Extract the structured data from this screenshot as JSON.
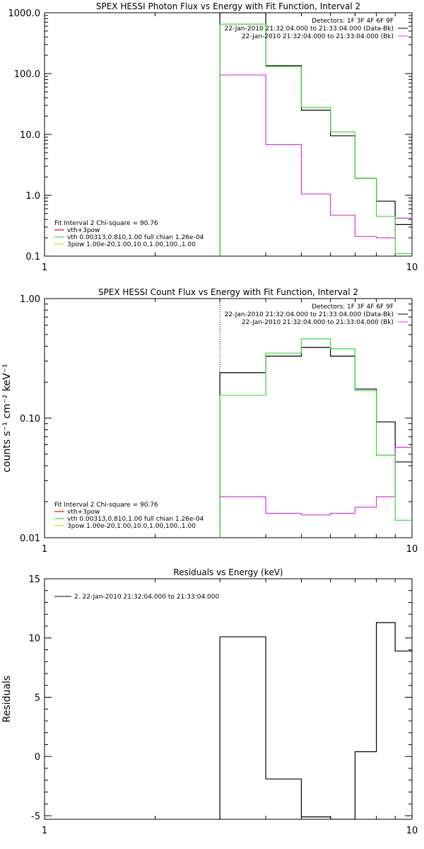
{
  "colors": {
    "black": "#000000",
    "magenta": "#dd33dd",
    "green": "#33dd33",
    "red": "#ff0000",
    "yellow": "#dddd00"
  },
  "chart_data": [
    {
      "type": "line",
      "title": "SPEX HESSI Photon Flux vs Energy with Fit Function, Interval 2",
      "xlabel": "",
      "ylabel": "",
      "xscale": "log",
      "yscale": "log",
      "xlim": [
        1,
        10
      ],
      "ylim": [
        0.1,
        1000
      ],
      "x_ticks": [
        {
          "v": 1,
          "label": "1"
        },
        {
          "v": 10,
          "label": "10"
        }
      ],
      "y_ticks": [
        {
          "v": 1000,
          "label": "1000.0"
        },
        {
          "v": 100,
          "label": "100.0"
        },
        {
          "v": 10,
          "label": "10.0"
        },
        {
          "v": 1,
          "label": "1.0"
        },
        {
          "v": 0.1,
          "label": "0.1"
        }
      ],
      "vline": {
        "x": 3.0,
        "color": "green"
      },
      "info_lines": [
        "Detectors: 1F 3F 4F 6F 9F",
        "22-Jan-2010 21:32:04.000 to 21:33:04.000 (Data-Bk)",
        "22-Jan-2010 21:32:04.000 to 21:33:04.000 (Bk)"
      ],
      "fit_legend": {
        "header": "Fit Interval 2    Chi-square = 90.76",
        "entries": [
          {
            "label": "vth+3pow",
            "color": "red"
          },
          {
            "label": "vth 0.00313,0.810,1.00  full chian 1.26e-04",
            "color": "green"
          },
          {
            "label": "3pow 1.00e-20,1.00,10.0,1.00,100.,1.00",
            "color": "yellow"
          }
        ]
      },
      "series": [
        {
          "name": "22-Jan-2010 21:32:04.000 to 21:33:04.000 (Data-Bk)",
          "color": "black",
          "edges": [
            3.0,
            4.0,
            5.0,
            6.0,
            7.0,
            8.0,
            9.0,
            10.0
          ],
          "values": [
            1000,
            135,
            25,
            9.5,
            1.9,
            0.8,
            0.33
          ]
        },
        {
          "name": "22-Jan-2010 21:32:04.000 to 21:33:04.000 (Bk)",
          "color": "magenta",
          "edges": [
            3.0,
            4.0,
            5.0,
            6.0,
            7.0,
            8.0,
            9.0,
            10.0
          ],
          "values": [
            95,
            6.8,
            1.05,
            0.47,
            0.21,
            0.2,
            0.42
          ]
        },
        {
          "name": "",
          "color": "green",
          "edges": [
            3.0,
            4.0,
            5.0,
            6.0,
            7.0,
            8.0,
            9.0,
            10.0
          ],
          "values": [
            650,
            130,
            28,
            11,
            1.9,
            0.45,
            0.11
          ]
        }
      ]
    },
    {
      "type": "line",
      "title": "SPEX HESSI Count Flux vs Energy with Fit Function, Interval 2",
      "xlabel": "",
      "ylabel": "counts s⁻¹ cm⁻² keV⁻¹",
      "xscale": "log",
      "yscale": "log",
      "xlim": [
        1,
        10
      ],
      "ylim": [
        0.01,
        1
      ],
      "x_ticks": [
        {
          "v": 1,
          "label": "1"
        },
        {
          "v": 10,
          "label": "10"
        }
      ],
      "y_ticks": [
        {
          "v": 1,
          "label": "1.00"
        },
        {
          "v": 0.1,
          "label": "0.10"
        },
        {
          "v": 0.01,
          "label": "0.01"
        }
      ],
      "vline": {
        "x": 3.0,
        "color": "black"
      },
      "vline2": {
        "x": 3.0,
        "color": "green",
        "ymax": 0.15
      },
      "info_lines": [
        "Detectors: 1F 3F 4F 6F 9F",
        "22-Jan-2010 21:32:04.000 to 21:33:04.000 (Data-Bk)",
        "22-Jan-2010 21:32:04.000 to 21:33:04.000 (Bk)"
      ],
      "fit_legend": {
        "header": "Fit Interval 2    Chi-square = 90.76",
        "entries": [
          {
            "label": "vth+3pow",
            "color": "red"
          },
          {
            "label": "vth 0.00313,0.810,1.00  full chian 1.26e-04",
            "color": "green"
          },
          {
            "label": "3pow 1.00e-20,1.00,10.0,1.00,100.,1.00",
            "color": "yellow"
          }
        ]
      },
      "series": [
        {
          "name": "22-Jan-2010 21:32:04.000 to 21:33:04.000 (Data-Bk)",
          "color": "black",
          "edges": [
            3.0,
            4.0,
            5.0,
            6.0,
            7.0,
            8.0,
            9.0,
            10.0
          ],
          "values": [
            0.24,
            0.33,
            0.39,
            0.33,
            0.175,
            0.093,
            0.043
          ]
        },
        {
          "name": "22-Jan-2010 21:32:04.000 to 21:33:04.000 (Bk)",
          "color": "magenta",
          "edges": [
            3.0,
            4.0,
            5.0,
            6.0,
            7.0,
            8.0,
            9.0,
            10.0
          ],
          "values": [
            0.022,
            0.016,
            0.0155,
            0.016,
            0.018,
            0.022,
            0.057
          ]
        },
        {
          "name": "",
          "color": "green",
          "edges": [
            3.0,
            4.0,
            5.0,
            6.0,
            7.0,
            8.0,
            9.0,
            10.0
          ],
          "values": [
            0.155,
            0.35,
            0.46,
            0.38,
            0.17,
            0.049,
            0.014
          ]
        }
      ]
    },
    {
      "type": "line",
      "title": "Residuals vs Energy (keV)",
      "xlabel": "",
      "ylabel": "Residuals",
      "xscale": "log",
      "yscale": "linear",
      "xlim": [
        1,
        10
      ],
      "ylim": [
        -5.3,
        15
      ],
      "x_ticks": [
        {
          "v": 1,
          "label": "1"
        },
        {
          "v": 10,
          "label": "10"
        }
      ],
      "y_ticks": [
        {
          "v": 15,
          "label": "15"
        },
        {
          "v": 10,
          "label": "10"
        },
        {
          "v": 5,
          "label": "5"
        },
        {
          "v": 0,
          "label": "0"
        },
        {
          "v": -5,
          "label": "-5"
        }
      ],
      "legend_entry": "2. 22-Jan-2010 21:32:04.000 to 21:33:04.000",
      "series": [
        {
          "name": "2. 22-Jan-2010 21:32:04.000 to 21:33:04.000",
          "color": "black",
          "edges": [
            3.0,
            4.0,
            5.0,
            6.0,
            7.0,
            8.0,
            9.0,
            10.0
          ],
          "values": [
            10.1,
            -1.9,
            -5.1,
            -5.4,
            0.4,
            11.3,
            8.9
          ]
        }
      ]
    }
  ]
}
